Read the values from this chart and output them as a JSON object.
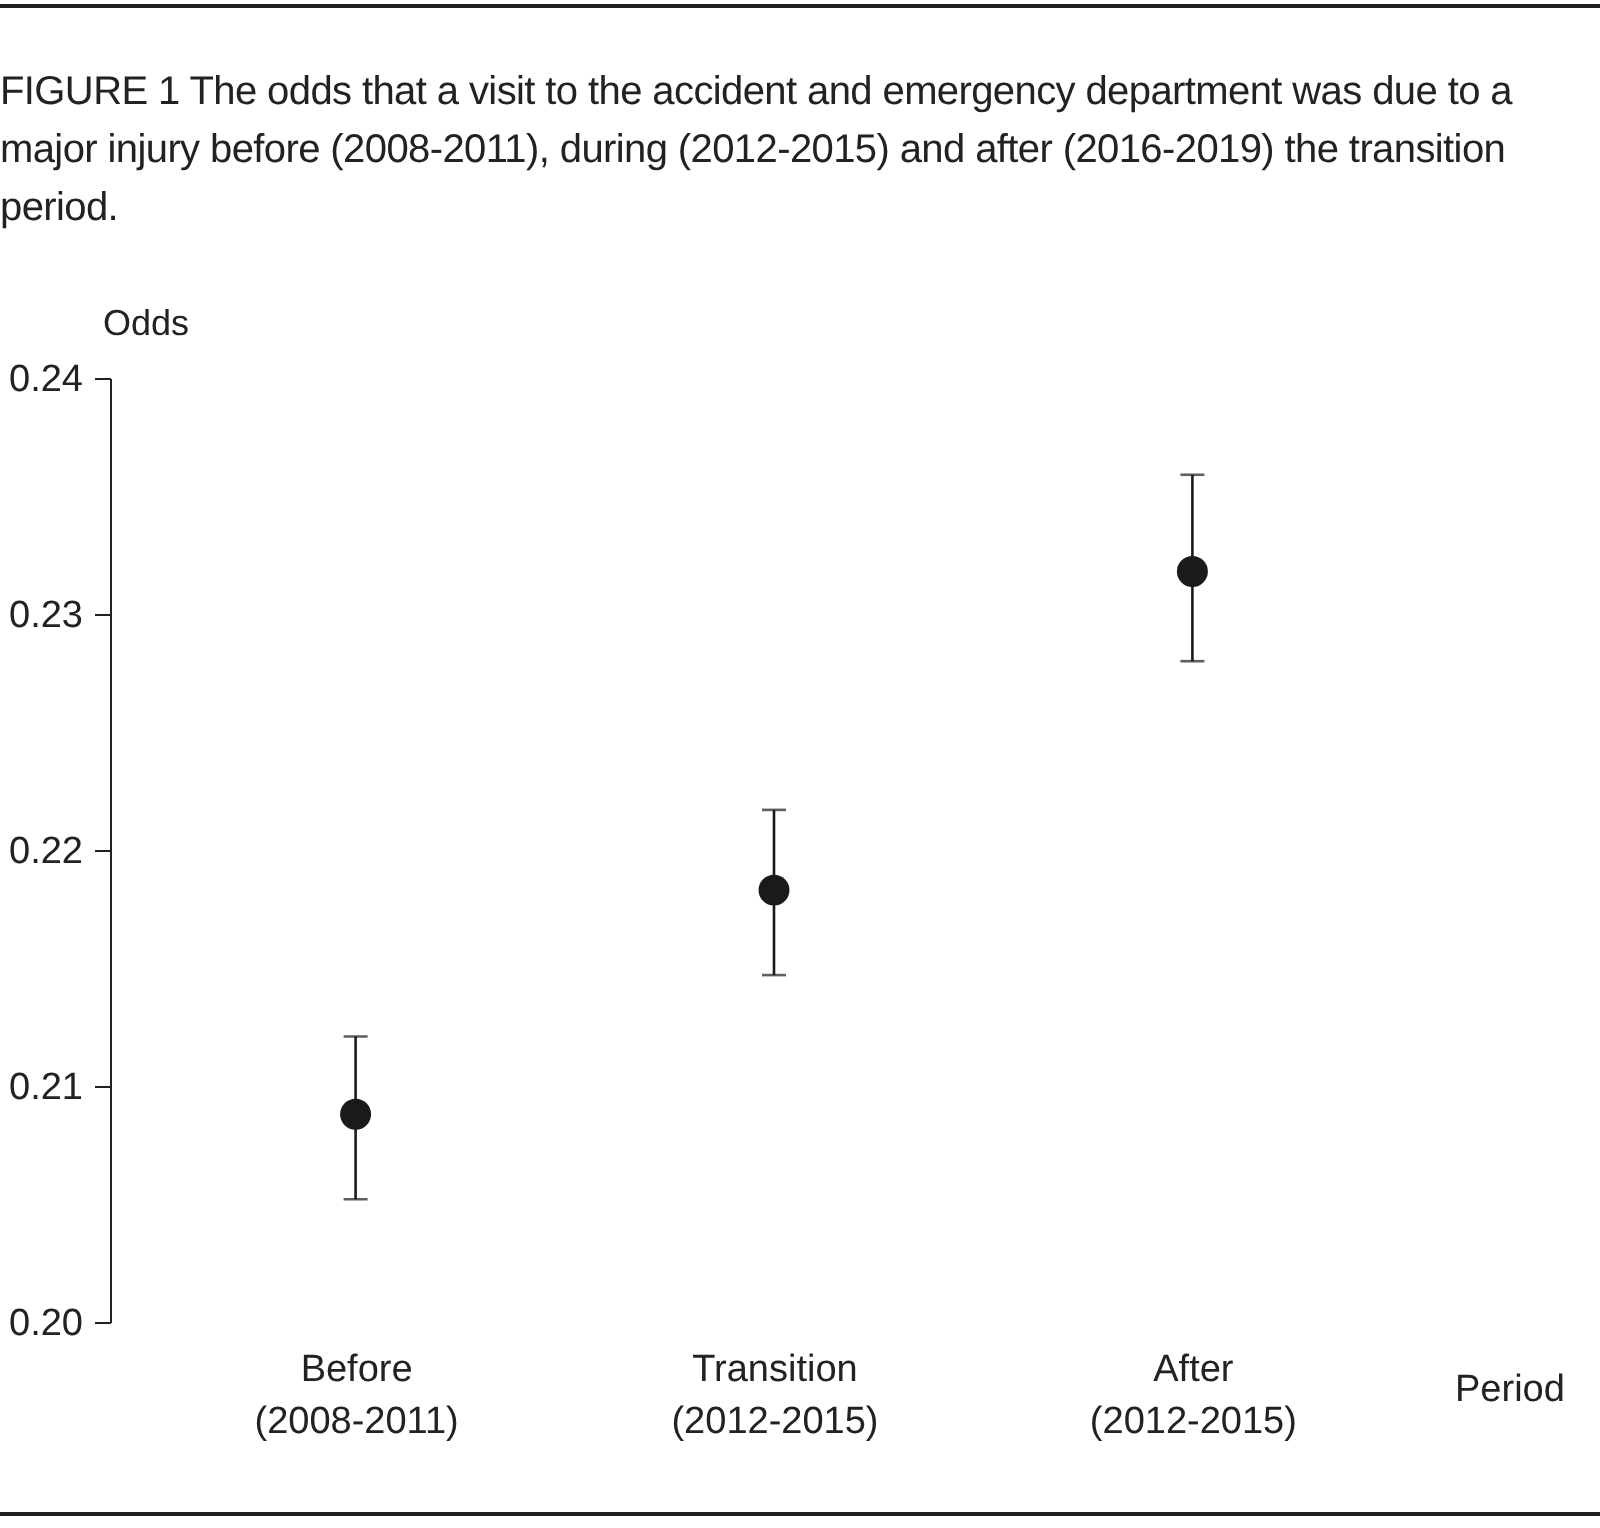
{
  "chart_data": {
    "type": "scatter",
    "title": "FIGURE 1 The odds that a visit to the accident and emergency department was due to a major injury before (2008-2011), during (2012-2015) and after (2016-2019) the transition period.",
    "xlabel": "Period",
    "ylabel": "Odds",
    "categories": [
      "Before\n(2008-2011)",
      "Transition\n(2012-2015)",
      "After\n(2012-2015)"
    ],
    "series": [
      {
        "color": "#1a1a1a",
        "values": [
          0.2088,
          0.2183,
          0.2318
        ],
        "errors": [
          [
            0.2052,
            0.2121
          ],
          [
            0.2147,
            0.2217
          ],
          [
            0.228,
            0.2359
          ]
        ]
      }
    ],
    "ylim": [
      0.2,
      0.24
    ],
    "yticks": [
      {
        "value": 0.2,
        "label": "0.20"
      },
      0.21,
      0.22,
      0.23,
      0.24
    ],
    "marker": "circle",
    "grid": false
  }
}
